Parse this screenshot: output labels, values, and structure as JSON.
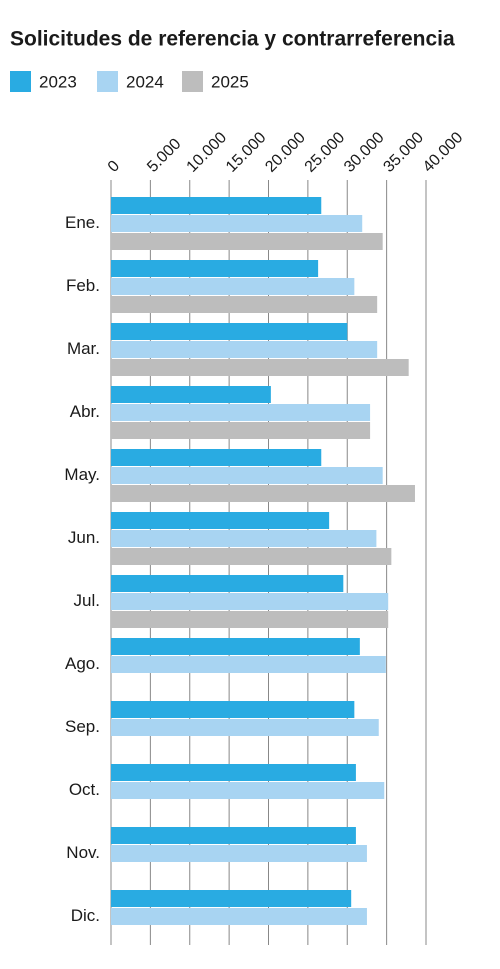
{
  "chart_data": {
    "type": "bar",
    "orientation": "horizontal",
    "title": "Solicitudes de referencia y contrarreferencia",
    "categories": [
      "Ene.",
      "Feb.",
      "Mar.",
      "Abr.",
      "May.",
      "Jun.",
      "Jul.",
      "Ago.",
      "Sep.",
      "Oct.",
      "Nov.",
      "Dic."
    ],
    "series": [
      {
        "name": "2023",
        "color": "#29abe2",
        "values": [
          26700,
          26300,
          30000,
          20300,
          26700,
          27700,
          29500,
          31600,
          30900,
          31100,
          31100,
          30500
        ]
      },
      {
        "name": "2024",
        "color": "#a8d4f2",
        "values": [
          31900,
          30900,
          33800,
          32900,
          34500,
          33700,
          35200,
          34900,
          34000,
          34700,
          32500,
          32500
        ]
      },
      {
        "name": "2025",
        "color": "#bdbdbd",
        "values": [
          34500,
          33800,
          37800,
          32900,
          38600,
          35600,
          35200,
          null,
          null,
          null,
          null,
          null
        ]
      }
    ],
    "xlim": [
      0,
      40000
    ],
    "xticks": [
      0,
      {
        "value": 5000,
        "label": "5.000"
      },
      {
        "value": 10000,
        "label": "10.000"
      },
      {
        "value": 15000,
        "label": "15.000"
      },
      {
        "value": 20000,
        "label": "20.000"
      },
      {
        "value": 25000,
        "label": "25.000"
      },
      {
        "value": 30000,
        "label": "30.000"
      },
      {
        "value": 35000,
        "label": "35.000"
      },
      {
        "value": 40000,
        "label": "40.000"
      }
    ],
    "grid": true
  }
}
